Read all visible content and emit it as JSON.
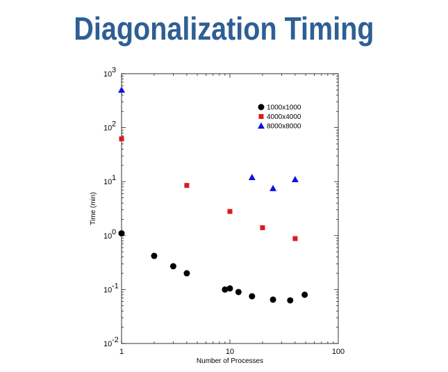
{
  "slide": {
    "title": "Diagonalization Timing"
  },
  "chart_data": {
    "type": "scatter",
    "title": "",
    "xlabel": "Number of Processes",
    "ylabel": "Time (min)",
    "xscale": "log",
    "yscale": "log",
    "xlim": [
      1,
      100
    ],
    "ylim": [
      0.01,
      1000
    ],
    "x_ticks": [
      {
        "value": 1,
        "label": "1"
      },
      {
        "value": 10,
        "label": "10"
      },
      {
        "value": 100,
        "label": "100"
      }
    ],
    "y_ticks": [
      {
        "value": 0.01,
        "base": "10",
        "exp": "-2"
      },
      {
        "value": 0.1,
        "base": "10",
        "exp": "-1"
      },
      {
        "value": 1,
        "base": "10",
        "exp": "0"
      },
      {
        "value": 10,
        "base": "10",
        "exp": "1"
      },
      {
        "value": 100,
        "base": "10",
        "exp": "2"
      },
      {
        "value": 1000,
        "base": "10",
        "exp": "3"
      }
    ],
    "grid": false,
    "legend_position": "top-right",
    "series": [
      {
        "name": "1000x1000",
        "marker": "circle",
        "color": "#000000",
        "points": [
          {
            "x": 1,
            "y": 1.1
          },
          {
            "x": 2,
            "y": 0.42
          },
          {
            "x": 3,
            "y": 0.27
          },
          {
            "x": 4,
            "y": 0.2
          },
          {
            "x": 9,
            "y": 0.1
          },
          {
            "x": 10,
            "y": 0.105
          },
          {
            "x": 12,
            "y": 0.09
          },
          {
            "x": 16,
            "y": 0.075
          },
          {
            "x": 25,
            "y": 0.065
          },
          {
            "x": 36,
            "y": 0.063
          },
          {
            "x": 49,
            "y": 0.08
          }
        ]
      },
      {
        "name": "4000x4000",
        "marker": "square",
        "color": "#dd1a1a",
        "points": [
          {
            "x": 1,
            "y": 62
          },
          {
            "x": 4,
            "y": 8.5
          },
          {
            "x": 10,
            "y": 2.8
          },
          {
            "x": 20,
            "y": 1.4
          },
          {
            "x": 40,
            "y": 0.88
          }
        ]
      },
      {
        "name": "8000x8000",
        "marker": "triangle",
        "color": "#1010e0",
        "points": [
          {
            "x": 1,
            "y": 500
          },
          {
            "x": 16,
            "y": 12
          },
          {
            "x": 25,
            "y": 7.5
          },
          {
            "x": 40,
            "y": 11
          }
        ]
      }
    ]
  }
}
